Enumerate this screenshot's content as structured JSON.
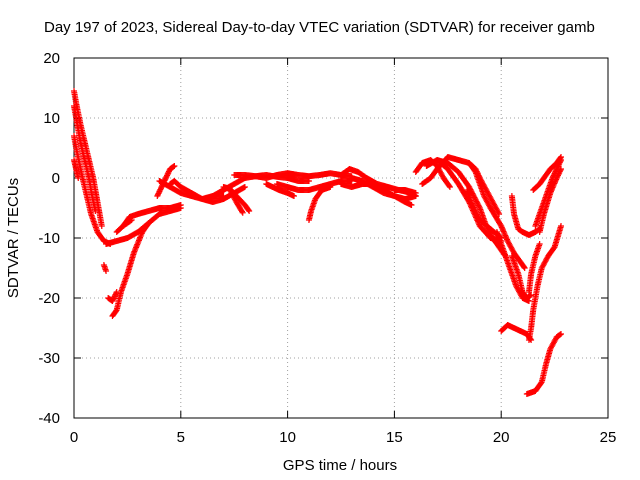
{
  "chart_data": {
    "type": "scatter",
    "title": "Day 197 of 2023, Sidereal Day-to-day VTEC variation (SDTVAR) for receiver gamb",
    "xlabel": "GPS time / hours",
    "ylabel": "SDTVAR / TECUs",
    "xlim": [
      0,
      25
    ],
    "ylim": [
      -40,
      20
    ],
    "xticks": [
      "0",
      "5",
      "10",
      "15",
      "20",
      "25"
    ],
    "yticks": [
      "-40",
      "-30",
      "-20",
      "-10",
      "0",
      "10",
      "20"
    ],
    "grid": true,
    "marker": "+",
    "color": "#ff0000",
    "tracks": [
      [
        [
          0.0,
          14.5
        ],
        [
          0.1,
          12.5
        ],
        [
          0.3,
          9
        ],
        [
          0.5,
          6
        ],
        [
          0.7,
          3
        ],
        [
          0.9,
          0
        ],
        [
          1.05,
          -3
        ],
        [
          1.2,
          -6
        ],
        [
          1.3,
          -8
        ]
      ],
      [
        [
          0.0,
          12.0
        ],
        [
          0.15,
          9
        ],
        [
          0.3,
          6
        ],
        [
          0.5,
          3
        ],
        [
          0.7,
          0
        ],
        [
          0.85,
          -3
        ],
        [
          1.0,
          -5.5
        ]
      ],
      [
        [
          0.0,
          7.0
        ],
        [
          0.1,
          5
        ],
        [
          0.25,
          2.5
        ],
        [
          0.4,
          0
        ],
        [
          0.6,
          -3
        ],
        [
          0.8,
          -6
        ],
        [
          1.1,
          -9
        ],
        [
          1.4,
          -10.5
        ],
        [
          1.7,
          -11
        ]
      ],
      [
        [
          0.0,
          3.0
        ],
        [
          0.1,
          1.5
        ],
        [
          0.2,
          0
        ]
      ],
      [
        [
          1.5,
          -11
        ],
        [
          2.0,
          -10.5
        ],
        [
          2.5,
          -10
        ],
        [
          3.0,
          -9
        ],
        [
          3.5,
          -7.5
        ],
        [
          4.0,
          -6
        ],
        [
          4.5,
          -5.5
        ],
        [
          5.0,
          -5
        ]
      ],
      [
        [
          1.6,
          -20
        ],
        [
          1.8,
          -20.5
        ],
        [
          2.0,
          -19
        ]
      ],
      [
        [
          1.8,
          -23
        ],
        [
          2.0,
          -22
        ],
        [
          2.2,
          -19
        ],
        [
          2.5,
          -16
        ],
        [
          2.8,
          -12.5
        ],
        [
          3.2,
          -9
        ],
        [
          3.5,
          -7.5
        ]
      ],
      [
        [
          1.4,
          -14.5
        ],
        [
          1.5,
          -15.5
        ]
      ],
      [
        [
          2.3,
          -8
        ],
        [
          2.6,
          -6.5
        ],
        [
          3.0,
          -6
        ],
        [
          3.5,
          -5.5
        ],
        [
          4.0,
          -5
        ],
        [
          4.5,
          -5
        ],
        [
          5.0,
          -4.5
        ]
      ],
      [
        [
          2.0,
          -9
        ],
        [
          2.3,
          -8
        ],
        [
          2.7,
          -7
        ]
      ],
      [
        [
          3.9,
          -3
        ],
        [
          4.1,
          -1.5
        ],
        [
          4.3,
          0
        ],
        [
          4.5,
          1.5
        ],
        [
          4.7,
          2
        ]
      ],
      [
        [
          4.5,
          -1
        ],
        [
          4.7,
          -0.5
        ],
        [
          5.0,
          -1.5
        ],
        [
          5.5,
          -2.5
        ],
        [
          6.0,
          -3.5
        ],
        [
          6.5,
          -4
        ],
        [
          7.0,
          -3.5
        ],
        [
          7.5,
          -2.5
        ],
        [
          8.0,
          -1.5
        ]
      ],
      [
        [
          4.0,
          -0.5
        ],
        [
          4.5,
          -1.5
        ],
        [
          5.0,
          -2.5
        ],
        [
          5.5,
          -3
        ],
        [
          6.0,
          -3.5
        ],
        [
          6.5,
          -3
        ],
        [
          7.0,
          -3
        ]
      ],
      [
        [
          6.5,
          -3
        ],
        [
          7.0,
          -2
        ],
        [
          7.5,
          -1
        ],
        [
          8.0,
          0
        ],
        [
          8.5,
          0.3
        ],
        [
          9.0,
          0.5
        ],
        [
          9.5,
          0.2
        ],
        [
          10.0,
          0
        ],
        [
          10.5,
          -0.5
        ],
        [
          11.0,
          -0.5
        ]
      ],
      [
        [
          7.0,
          -1.5
        ],
        [
          7.3,
          -1.8
        ],
        [
          7.6,
          -3
        ],
        [
          8.0,
          -4.5
        ],
        [
          8.2,
          -5.5
        ]
      ],
      [
        [
          7.3,
          -2
        ],
        [
          7.6,
          -4
        ],
        [
          7.9,
          -5.8
        ]
      ],
      [
        [
          7.5,
          0.5
        ],
        [
          8.0,
          0.5
        ],
        [
          8.5,
          0.3
        ],
        [
          9.0,
          0
        ],
        [
          9.5,
          0.5
        ],
        [
          10.0,
          0.8
        ],
        [
          10.5,
          0.5
        ],
        [
          11.0,
          0.3
        ],
        [
          11.5,
          0.5
        ],
        [
          12.0,
          0.8
        ],
        [
          12.5,
          0.5
        ],
        [
          13.0,
          0.3
        ]
      ],
      [
        [
          9.0,
          -1
        ],
        [
          9.3,
          -1.5
        ],
        [
          9.6,
          -2
        ],
        [
          10.0,
          -2.5
        ],
        [
          10.3,
          -3
        ]
      ],
      [
        [
          9.5,
          -1
        ],
        [
          10.0,
          -1.5
        ],
        [
          10.5,
          -2
        ],
        [
          11.0,
          -2
        ],
        [
          11.5,
          -1.5
        ],
        [
          12.0,
          -1
        ],
        [
          12.5,
          -0.5
        ],
        [
          13.0,
          -0.5
        ]
      ],
      [
        [
          11.0,
          -7
        ],
        [
          11.1,
          -5.5
        ],
        [
          11.3,
          -3.5
        ],
        [
          11.6,
          -2
        ],
        [
          12.0,
          -1.5
        ]
      ],
      [
        [
          12.5,
          0.5
        ],
        [
          12.9,
          1.5
        ],
        [
          13.3,
          1
        ],
        [
          13.7,
          0
        ],
        [
          14.2,
          -1
        ],
        [
          14.7,
          -1.5
        ],
        [
          15.2,
          -2
        ],
        [
          15.8,
          -2.5
        ],
        [
          16.0,
          -3
        ]
      ],
      [
        [
          12.5,
          -1
        ],
        [
          13.0,
          -1.5
        ],
        [
          13.5,
          -1
        ],
        [
          14.0,
          -1
        ],
        [
          14.5,
          -2
        ],
        [
          15.0,
          -3
        ],
        [
          15.5,
          -4
        ],
        [
          15.8,
          -4.5
        ]
      ],
      [
        [
          13.0,
          0
        ],
        [
          13.5,
          -0.5
        ],
        [
          14.0,
          -1.5
        ],
        [
          14.5,
          -2.5
        ],
        [
          15.0,
          -3
        ],
        [
          15.5,
          -3.5
        ],
        [
          16.0,
          -3
        ]
      ],
      [
        [
          15.0,
          -2
        ],
        [
          15.5,
          -2
        ],
        [
          16.0,
          -2.5
        ]
      ],
      [
        [
          16.0,
          1
        ],
        [
          16.3,
          2.5
        ],
        [
          16.7,
          3
        ],
        [
          17.0,
          2
        ],
        [
          17.3,
          0
        ],
        [
          17.6,
          -1.5
        ]
      ],
      [
        [
          16.3,
          -1
        ],
        [
          16.7,
          0
        ],
        [
          17.0,
          1.5
        ],
        [
          17.5,
          3.5
        ],
        [
          18.0,
          3
        ],
        [
          18.5,
          2.5
        ],
        [
          18.8,
          1
        ],
        [
          19.0,
          -1
        ],
        [
          19.2,
          -3
        ],
        [
          19.5,
          -5
        ]
      ],
      [
        [
          17.0,
          3
        ],
        [
          17.5,
          2.5
        ],
        [
          18.0,
          1
        ],
        [
          18.5,
          -1.5
        ],
        [
          19.0,
          -5
        ],
        [
          19.3,
          -8
        ],
        [
          19.6,
          -10
        ],
        [
          20.0,
          -12
        ],
        [
          20.2,
          -13
        ]
      ],
      [
        [
          16.5,
          2
        ],
        [
          17.0,
          3
        ],
        [
          17.5,
          1.5
        ],
        [
          18.0,
          -1
        ],
        [
          18.5,
          -4
        ],
        [
          19.0,
          -8
        ],
        [
          19.5,
          -10
        ],
        [
          20.0,
          -10.5
        ]
      ],
      [
        [
          18.5,
          2.5
        ],
        [
          18.8,
          1.5
        ],
        [
          19.0,
          0
        ],
        [
          19.3,
          -2
        ],
        [
          19.6,
          -4
        ],
        [
          19.9,
          -6
        ]
      ],
      [
        [
          18.4,
          -2
        ],
        [
          18.6,
          -4
        ],
        [
          19.0,
          -7
        ],
        [
          19.5,
          -8.5
        ],
        [
          20.0,
          -10
        ]
      ],
      [
        [
          19.5,
          -5
        ],
        [
          20.0,
          -8
        ],
        [
          20.3,
          -10.5
        ],
        [
          20.6,
          -12.5
        ],
        [
          20.9,
          -14
        ],
        [
          21.1,
          -15
        ]
      ],
      [
        [
          19.8,
          -9
        ],
        [
          20.1,
          -12
        ],
        [
          20.4,
          -15
        ],
        [
          20.7,
          -18
        ],
        [
          21.0,
          -20
        ],
        [
          21.3,
          -20.5
        ]
      ],
      [
        [
          20.5,
          -13
        ],
        [
          20.8,
          -16
        ],
        [
          21.0,
          -19
        ],
        [
          21.2,
          -20
        ],
        [
          21.4,
          -19.5
        ]
      ],
      [
        [
          20.0,
          -25.5
        ],
        [
          20.3,
          -24.5
        ],
        [
          20.6,
          -25
        ],
        [
          20.9,
          -25.5
        ],
        [
          21.2,
          -26
        ],
        [
          21.4,
          -27
        ]
      ],
      [
        [
          21.3,
          -27
        ],
        [
          21.4,
          -25
        ],
        [
          21.5,
          -22
        ],
        [
          21.7,
          -18
        ],
        [
          21.9,
          -15
        ],
        [
          22.2,
          -13
        ],
        [
          22.5,
          -11.5
        ],
        [
          22.8,
          -8
        ]
      ],
      [
        [
          21.3,
          -19
        ],
        [
          21.4,
          -16
        ],
        [
          21.6,
          -13
        ],
        [
          21.8,
          -11
        ]
      ],
      [
        [
          20.5,
          -3
        ],
        [
          20.6,
          -6
        ],
        [
          20.8,
          -8.5
        ],
        [
          21.0,
          -9
        ],
        [
          21.3,
          -9.5
        ],
        [
          21.6,
          -9
        ],
        [
          21.8,
          -8.5
        ]
      ],
      [
        [
          21.6,
          -8
        ],
        [
          21.8,
          -6
        ],
        [
          22.0,
          -4
        ],
        [
          22.2,
          -2
        ],
        [
          22.4,
          0
        ],
        [
          22.6,
          1.5
        ],
        [
          22.8,
          3
        ]
      ],
      [
        [
          21.5,
          -2
        ],
        [
          21.8,
          -1
        ],
        [
          22.0,
          0
        ],
        [
          22.3,
          1.5
        ],
        [
          22.6,
          2.5
        ],
        [
          22.8,
          3.5
        ]
      ],
      [
        [
          21.8,
          -9
        ],
        [
          22.0,
          -6
        ],
        [
          22.3,
          -2.5
        ],
        [
          22.6,
          0
        ],
        [
          22.8,
          1.5
        ]
      ],
      [
        [
          21.2,
          -36
        ],
        [
          21.6,
          -35.5
        ],
        [
          21.9,
          -34
        ],
        [
          22.1,
          -31
        ],
        [
          22.3,
          -28.5
        ],
        [
          22.6,
          -26.5
        ],
        [
          22.8,
          -26
        ]
      ]
    ]
  }
}
